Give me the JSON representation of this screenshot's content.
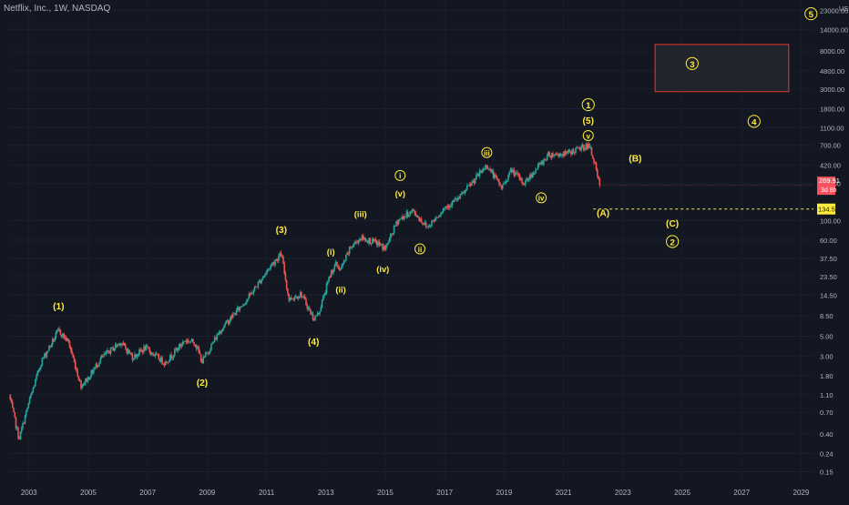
{
  "header": {
    "symbol_title": "Netflix, Inc., 1W, NASDAQ"
  },
  "price_axis": {
    "currency": "USD",
    "ticks": [
      "23000.00",
      "14000.00",
      "8000.00",
      "4800.00",
      "3000.00",
      "1800.00",
      "1100.00",
      "700.00",
      "420.00",
      "260.00",
      "100.00",
      "60.00",
      "37.50",
      "23.50",
      "14.50",
      "8.50",
      "5.00",
      "3.00",
      "1.80",
      "1.10",
      "0.70",
      "0.40",
      "0.24",
      "0.15"
    ],
    "last_price": "269.91",
    "countdown": "3d 8h",
    "level_label": "134.51"
  },
  "colors": {
    "background": "#131722",
    "candle_up": "#26a69a",
    "candle_down": "#ef5350",
    "wave_label": "#ffeb3b",
    "target_box_border": "#e53935",
    "target_box_fill": "#23262f",
    "last_price_badge": "#f7525f",
    "level_badge": "#ffeb3b"
  },
  "chart_data": {
    "type": "candlestick",
    "title": "Netflix, Inc., 1W, NASDAQ",
    "y_scale": "log",
    "ylim": [
      0.12,
      30000
    ],
    "x_range": [
      "2002-05",
      "2029-06"
    ],
    "x_tick_labels": [
      "2003",
      "2005",
      "2007",
      "2009",
      "2011",
      "2013",
      "2015",
      "2017",
      "2019",
      "2021",
      "2023",
      "2025",
      "2027",
      "2029"
    ],
    "price_path": [
      {
        "date": "2002-05",
        "price": 1.1
      },
      {
        "date": "2002-09",
        "price": 0.35
      },
      {
        "date": "2003-01",
        "price": 0.9
      },
      {
        "date": "2003-06",
        "price": 2.6
      },
      {
        "date": "2004-01",
        "price": 5.8
      },
      {
        "date": "2004-05",
        "price": 4.3
      },
      {
        "date": "2004-10",
        "price": 1.4
      },
      {
        "date": "2005-01",
        "price": 1.7
      },
      {
        "date": "2005-06",
        "price": 2.8
      },
      {
        "date": "2006-02",
        "price": 4.3
      },
      {
        "date": "2006-07",
        "price": 2.9
      },
      {
        "date": "2006-12",
        "price": 3.7
      },
      {
        "date": "2007-08",
        "price": 2.5
      },
      {
        "date": "2008-04",
        "price": 4.5
      },
      {
        "date": "2008-08",
        "price": 4.3
      },
      {
        "date": "2008-11",
        "price": 2.6
      },
      {
        "date": "2009-06",
        "price": 5.7
      },
      {
        "date": "2010-06",
        "price": 14
      },
      {
        "date": "2011-03",
        "price": 32
      },
      {
        "date": "2011-07",
        "price": 42
      },
      {
        "date": "2011-10",
        "price": 13
      },
      {
        "date": "2012-03",
        "price": 15
      },
      {
        "date": "2012-08",
        "price": 7.9
      },
      {
        "date": "2012-10",
        "price": 9
      },
      {
        "date": "2013-03",
        "price": 26
      },
      {
        "date": "2013-05",
        "price": 32
      },
      {
        "date": "2013-07",
        "price": 28
      },
      {
        "date": "2013-11",
        "price": 50
      },
      {
        "date": "2014-03",
        "price": 64
      },
      {
        "date": "2014-10",
        "price": 55
      },
      {
        "date": "2015-01",
        "price": 48
      },
      {
        "date": "2015-06",
        "price": 100
      },
      {
        "date": "2015-12",
        "price": 128
      },
      {
        "date": "2016-06",
        "price": 84
      },
      {
        "date": "2017-01",
        "price": 140
      },
      {
        "date": "2017-07",
        "price": 180
      },
      {
        "date": "2018-06",
        "price": 420
      },
      {
        "date": "2018-12",
        "price": 233
      },
      {
        "date": "2019-04",
        "price": 370
      },
      {
        "date": "2019-09",
        "price": 260
      },
      {
        "date": "2020-02",
        "price": 380
      },
      {
        "date": "2020-07",
        "price": 550
      },
      {
        "date": "2021-02",
        "price": 560
      },
      {
        "date": "2021-11",
        "price": 700
      },
      {
        "date": "2022-01",
        "price": 520
      },
      {
        "date": "2022-04",
        "price": 210
      }
    ],
    "wave_labels": [
      {
        "text": "(1)",
        "circled": false,
        "date": "2004-01",
        "price": 11,
        "size": 12
      },
      {
        "text": "(2)",
        "circled": false,
        "date": "2008-11",
        "price": 1.52,
        "size": 12
      },
      {
        "text": "(3)",
        "circled": false,
        "date": "2011-07",
        "price": 80,
        "size": 12
      },
      {
        "text": "(4)",
        "circled": false,
        "date": "2012-08",
        "price": 4.4,
        "size": 12
      },
      {
        "text": "(5)",
        "circled": false,
        "date": "2021-11",
        "price": 1340,
        "size": 12
      },
      {
        "text": "(i)",
        "circled": false,
        "date": "2013-03",
        "price": 45,
        "size": 11
      },
      {
        "text": "(ii)",
        "circled": false,
        "date": "2013-07",
        "price": 17,
        "size": 11
      },
      {
        "text": "(iii)",
        "circled": false,
        "date": "2014-03",
        "price": 120,
        "size": 11
      },
      {
        "text": "(iv)",
        "circled": false,
        "date": "2014-12",
        "price": 29,
        "size": 11
      },
      {
        "text": "(v)",
        "circled": false,
        "date": "2015-07",
        "price": 205,
        "size": 11
      },
      {
        "text": "(A)",
        "circled": false,
        "date": "2022-05",
        "price": 123,
        "size": 12
      },
      {
        "text": "(B)",
        "circled": false,
        "date": "2023-06",
        "price": 505,
        "size": 12
      },
      {
        "text": "(C)",
        "circled": false,
        "date": "2024-09",
        "price": 94,
        "size": 12
      },
      {
        "text": "i",
        "circled": true,
        "date": "2015-07",
        "price": 320,
        "size": 10
      },
      {
        "text": "ii",
        "circled": true,
        "date": "2016-03",
        "price": 48,
        "size": 10
      },
      {
        "text": "iii",
        "circled": true,
        "date": "2018-06",
        "price": 580,
        "size": 10
      },
      {
        "text": "iv",
        "circled": true,
        "date": "2020-04",
        "price": 180,
        "size": 10
      },
      {
        "text": "v",
        "circled": true,
        "date": "2021-11",
        "price": 900,
        "size": 10
      },
      {
        "text": "1",
        "circled": true,
        "date": "2021-11",
        "price": 2000,
        "size": 12
      },
      {
        "text": "2",
        "circled": true,
        "date": "2024-09",
        "price": 58,
        "size": 12
      },
      {
        "text": "3",
        "circled": true,
        "date": "2025-05",
        "price": 5800,
        "size": 12
      },
      {
        "text": "4",
        "circled": true,
        "date": "2027-06",
        "price": 1300,
        "size": 12
      },
      {
        "text": "5",
        "circled": true,
        "date": "2029-05",
        "price": 21000,
        "size": 12
      }
    ],
    "target_zone": {
      "date_start": "2024-02",
      "date_end": "2028-08",
      "price_low": 2800,
      "price_high": 9500
    },
    "horizontal_level": {
      "price": 134.51,
      "date_start": "2022-01",
      "style": "dashed"
    }
  }
}
